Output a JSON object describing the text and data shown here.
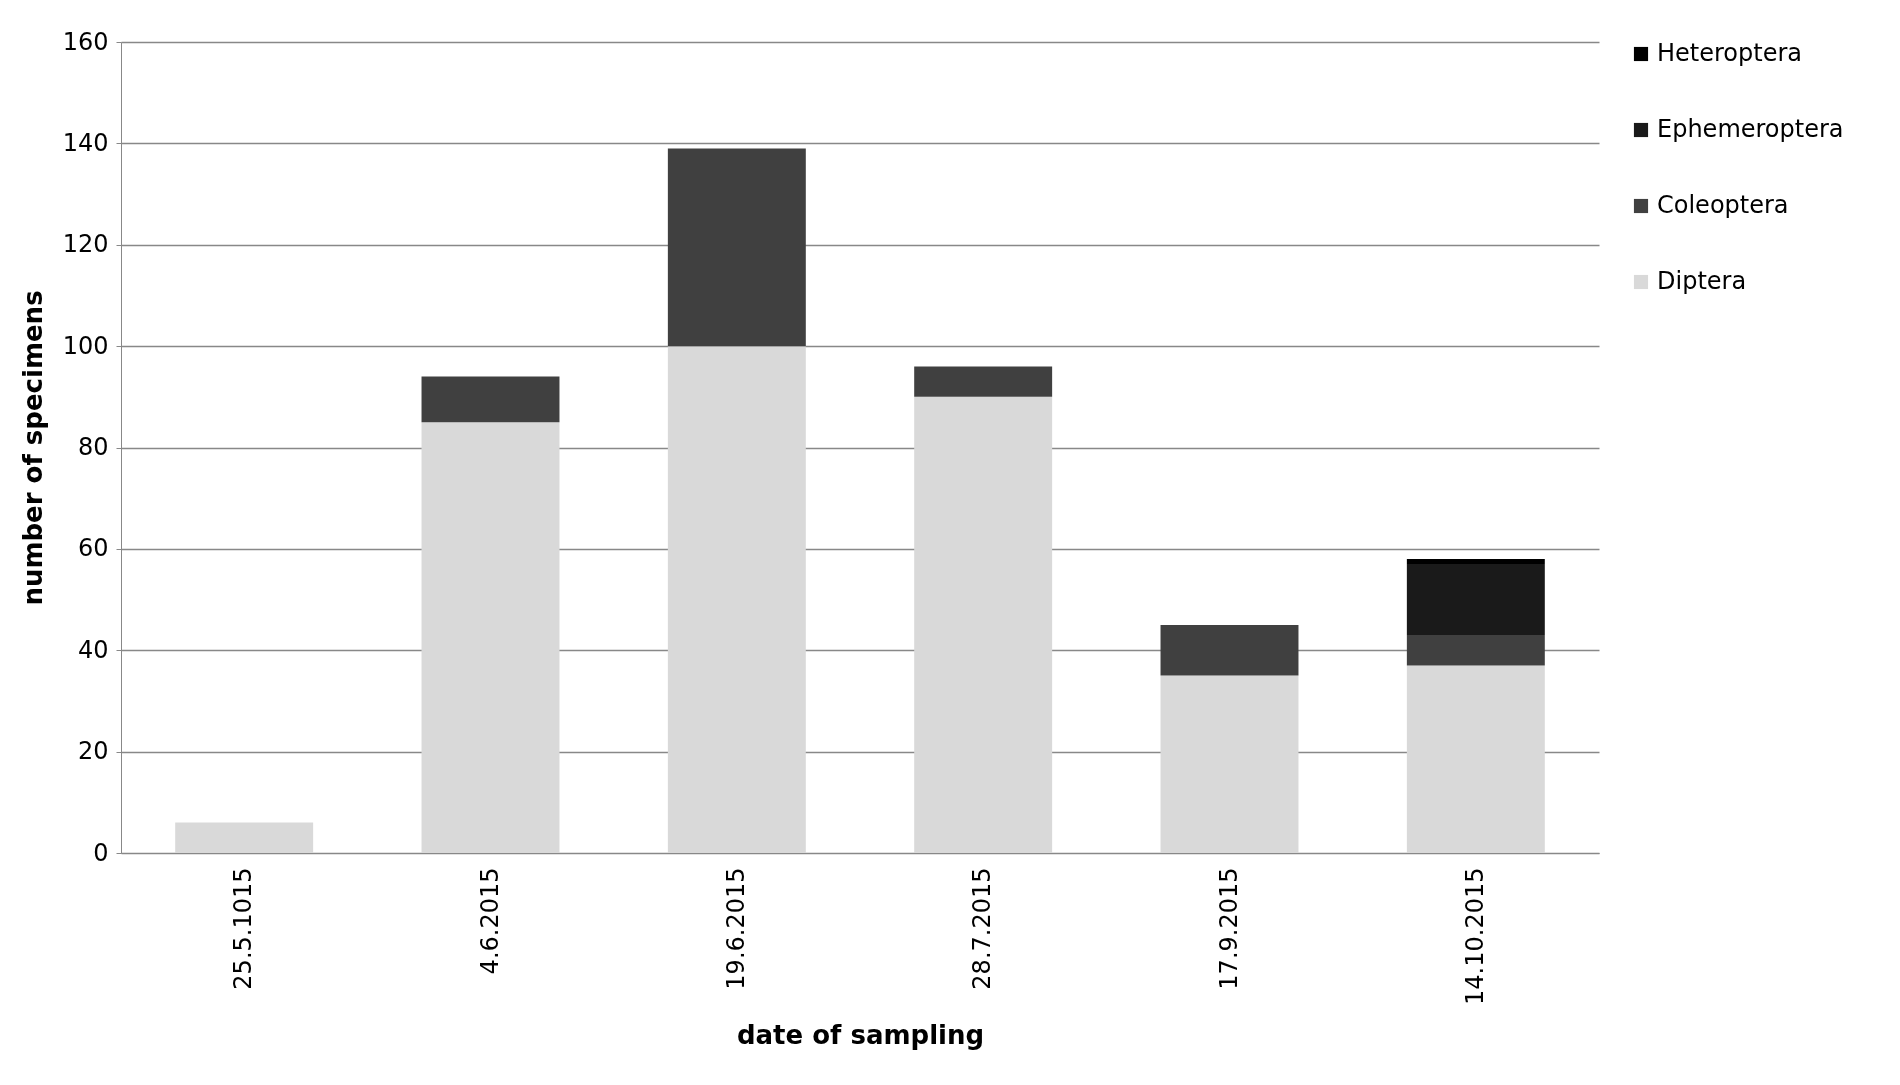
{
  "chart_data": {
    "type": "bar",
    "stacked": true,
    "xlabel": "date of sampling",
    "ylabel": "number of specimens",
    "categories": [
      "25.5.1015",
      "4.6.2015",
      "19.6.2015",
      "28.7.2015",
      "17.9.2015",
      "14.10.2015"
    ],
    "series": [
      {
        "name": "Diptera",
        "color": "#d9d9d9",
        "values": [
          6,
          85,
          100,
          90,
          35,
          37
        ]
      },
      {
        "name": "Coleoptera",
        "color": "#404040",
        "values": [
          0,
          9,
          39,
          6,
          10,
          6
        ]
      },
      {
        "name": "Ephemeroptera",
        "color": "#1a1a1a",
        "values": [
          0,
          0,
          0,
          0,
          0,
          14
        ]
      },
      {
        "name": "Heteroptera",
        "color": "#000000",
        "values": [
          0,
          0,
          0,
          0,
          0,
          1
        ]
      }
    ],
    "ylim": [
      0,
      160
    ],
    "yticks": [
      0,
      20,
      40,
      60,
      80,
      100,
      120,
      140,
      160
    ],
    "grid": "y",
    "legend": "right"
  }
}
